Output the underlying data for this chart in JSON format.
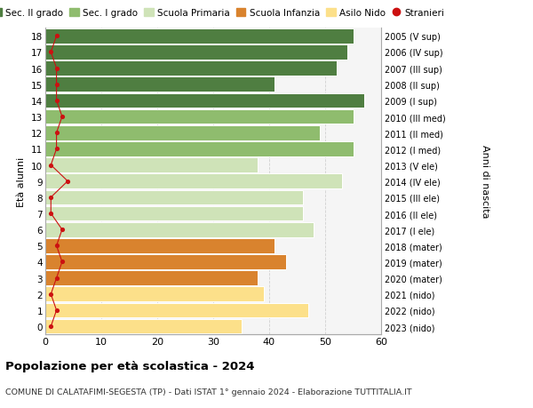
{
  "ages": [
    0,
    1,
    2,
    3,
    4,
    5,
    6,
    7,
    8,
    9,
    10,
    11,
    12,
    13,
    14,
    15,
    16,
    17,
    18
  ],
  "values": [
    35,
    47,
    39,
    38,
    43,
    41,
    48,
    46,
    46,
    53,
    38,
    55,
    49,
    55,
    57,
    41,
    52,
    54,
    55
  ],
  "foreigners": [
    1,
    2,
    1,
    2,
    3,
    2,
    3,
    1,
    1,
    4,
    1,
    2,
    2,
    3,
    2,
    2,
    2,
    1,
    2
  ],
  "bar_colors_by_age": {
    "0": "#fce08a",
    "1": "#fce08a",
    "2": "#fce08a",
    "3": "#d9832e",
    "4": "#d9832e",
    "5": "#d9832e",
    "6": "#cfe3b8",
    "7": "#cfe3b8",
    "8": "#cfe3b8",
    "9": "#cfe3b8",
    "10": "#cfe3b8",
    "11": "#8fbc6e",
    "12": "#8fbc6e",
    "13": "#8fbc6e",
    "14": "#4f7e41",
    "15": "#4f7e41",
    "16": "#4f7e41",
    "17": "#4f7e41",
    "18": "#4f7e41"
  },
  "right_labels": {
    "0": "2023 (nido)",
    "1": "2022 (nido)",
    "2": "2021 (nido)",
    "3": "2020 (mater)",
    "4": "2019 (mater)",
    "5": "2018 (mater)",
    "6": "2017 (I ele)",
    "7": "2016 (II ele)",
    "8": "2015 (III ele)",
    "9": "2014 (IV ele)",
    "10": "2013 (V ele)",
    "11": "2012 (I med)",
    "12": "2011 (II med)",
    "13": "2010 (III med)",
    "14": "2009 (I sup)",
    "15": "2008 (II sup)",
    "16": "2007 (III sup)",
    "17": "2006 (IV sup)",
    "18": "2005 (V sup)"
  },
  "title": "Popolazione per età scolastica - 2024",
  "subtitle": "COMUNE DI CALATAFIMI-SEGESTA (TP) - Dati ISTAT 1° gennaio 2024 - Elaborazione TUTTITALIA.IT",
  "ylabel_left": "Età alunni",
  "ylabel_right": "Anni di nascita",
  "xlim": [
    0,
    60
  ],
  "bg_color": "#f5f5f5",
  "grid_color": "#cccccc",
  "legend_items": [
    {
      "label": "Sec. II grado",
      "color": "#4f7e41"
    },
    {
      "label": "Sec. I grado",
      "color": "#8fbc6e"
    },
    {
      "label": "Scuola Primaria",
      "color": "#cfe3b8"
    },
    {
      "label": "Scuola Infanzia",
      "color": "#d9832e"
    },
    {
      "label": "Asilo Nido",
      "color": "#fce08a"
    },
    {
      "label": "Stranieri",
      "color": "#cc1111"
    }
  ],
  "stranieri_color": "#cc1111"
}
